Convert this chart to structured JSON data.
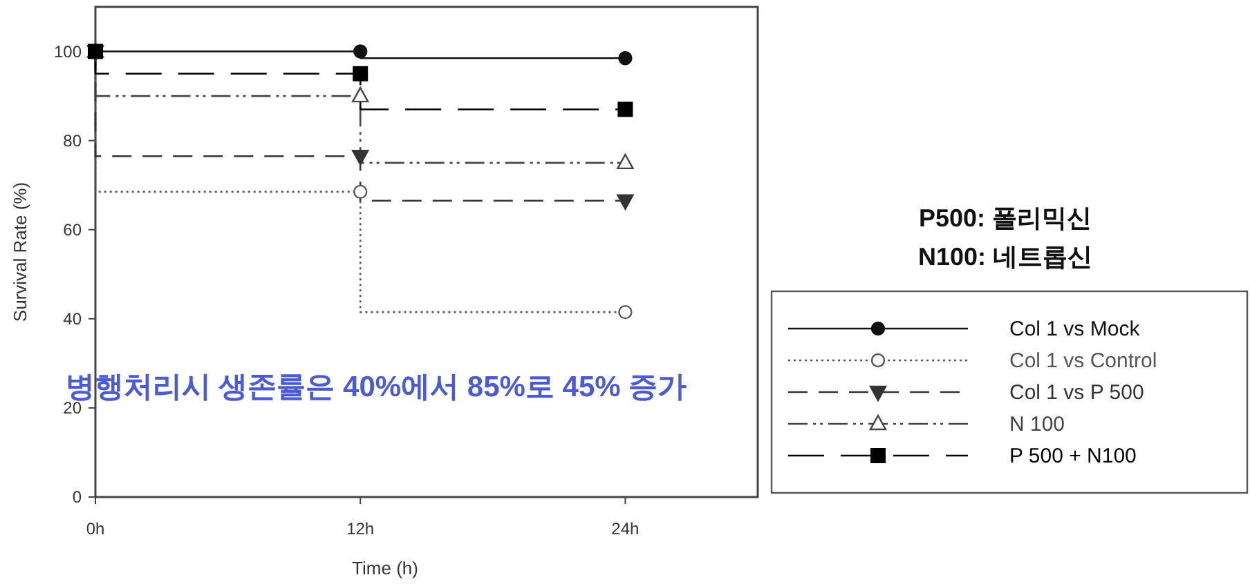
{
  "chart_data": {
    "type": "step",
    "xlabel": "Time (h)",
    "ylabel": "Survival Rate (%)",
    "x": [
      0,
      12,
      24
    ],
    "xlim": [
      0,
      30
    ],
    "xticks": [
      {
        "value": 0,
        "label": "0h"
      },
      {
        "value": 12,
        "label": "12h"
      },
      {
        "value": 24,
        "label": "24h"
      }
    ],
    "ylim": [
      0,
      110
    ],
    "yticks": [
      0,
      20,
      40,
      60,
      80,
      100
    ],
    "grid": false,
    "legend": "right",
    "series": [
      {
        "name": "Col 1 vs Mock",
        "color": "#111111",
        "values": [
          100,
          100,
          98.5
        ],
        "marker": "circle",
        "line_style": "solid"
      },
      {
        "name": "Col 1 vs Control",
        "color": "#555555",
        "values": [
          100,
          68.5,
          41.5
        ],
        "marker": "circle",
        "line_style": "dotted"
      },
      {
        "name": "Col 1 vs P 500",
        "color": "#333333",
        "values": [
          100,
          76.5,
          66.5
        ],
        "marker": "triangle",
        "line_style": "dashed"
      },
      {
        "name": "N 100",
        "color": "#444444",
        "values": [
          100,
          90,
          75
        ],
        "marker": "triangle",
        "line_style": "dashed"
      },
      {
        "name": "P 500 + N100",
        "color": "#000000",
        "values": [
          100,
          95,
          87
        ],
        "marker": "square",
        "line_style": "dashed"
      }
    ],
    "annotations": [
      "P500: 폴리믹신",
      "N100: 네트롭신",
      "병행처리시 생존률은 40%에서 85%로 45% 증가"
    ]
  }
}
